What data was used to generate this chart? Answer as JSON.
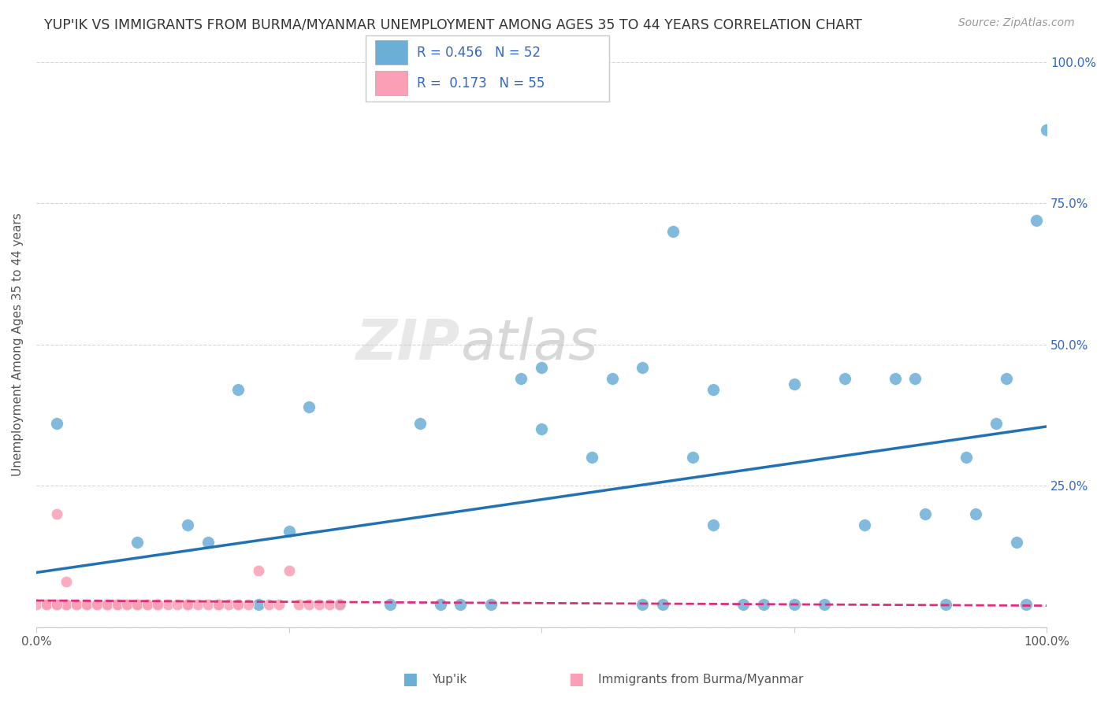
{
  "title": "YUP'IK VS IMMIGRANTS FROM BURMA/MYANMAR UNEMPLOYMENT AMONG AGES 35 TO 44 YEARS CORRELATION CHART",
  "source": "Source: ZipAtlas.com",
  "ylabel": "Unemployment Among Ages 35 to 44 years",
  "xlim": [
    0.0,
    1.0
  ],
  "ylim": [
    0.0,
    1.0
  ],
  "xtick_positions": [
    0.0,
    0.25,
    0.5,
    0.75,
    1.0
  ],
  "xticklabels": [
    "0.0%",
    "",
    "",
    "",
    "100.0%"
  ],
  "ytick_positions": [
    0.0,
    0.25,
    0.5,
    0.75,
    1.0
  ],
  "ytick_labels_right": [
    "",
    "25.0%",
    "50.0%",
    "75.0%",
    "100.0%"
  ],
  "legend_r1": "0.456",
  "legend_n1": "52",
  "legend_r2": "0.173",
  "legend_n2": "55",
  "legend_label1": "Yup'ik",
  "legend_label2": "Immigrants from Burma/Myanmar",
  "color_blue": "#6baed6",
  "color_pink": "#fa9fb5",
  "color_line_blue": "#2171b5",
  "color_line_pink": "#de2d7a",
  "watermark_zip": "ZIP",
  "watermark_atlas": "atlas",
  "background_color": "#ffffff",
  "grid_color": "#cccccc",
  "blue_x": [
    0.02,
    0.05,
    0.07,
    0.08,
    0.1,
    0.12,
    0.15,
    0.17,
    0.2,
    0.22,
    0.25,
    0.27,
    0.3,
    0.35,
    0.38,
    0.4,
    0.42,
    0.45,
    0.48,
    0.5,
    0.5,
    0.55,
    0.57,
    0.6,
    0.62,
    0.63,
    0.65,
    0.67,
    0.67,
    0.7,
    0.72,
    0.75,
    0.78,
    0.8,
    0.82,
    0.85,
    0.87,
    0.88,
    0.9,
    0.92,
    0.93,
    0.95,
    0.96,
    0.97,
    0.98,
    0.99,
    1.0,
    0.1,
    0.15,
    0.18,
    0.6,
    0.75
  ],
  "blue_y": [
    0.36,
    0.04,
    0.04,
    0.04,
    0.15,
    0.04,
    0.18,
    0.15,
    0.42,
    0.04,
    0.17,
    0.39,
    0.04,
    0.04,
    0.36,
    0.04,
    0.04,
    0.04,
    0.44,
    0.46,
    0.35,
    0.3,
    0.44,
    0.04,
    0.04,
    0.7,
    0.3,
    0.18,
    0.42,
    0.04,
    0.04,
    0.43,
    0.04,
    0.44,
    0.18,
    0.44,
    0.44,
    0.2,
    0.04,
    0.3,
    0.2,
    0.36,
    0.44,
    0.15,
    0.04,
    0.72,
    0.88,
    0.04,
    0.04,
    0.04,
    0.46,
    0.04
  ],
  "pink_x": [
    0.0,
    0.01,
    0.01,
    0.01,
    0.02,
    0.02,
    0.02,
    0.03,
    0.03,
    0.03,
    0.04,
    0.04,
    0.05,
    0.05,
    0.06,
    0.06,
    0.07,
    0.08,
    0.09,
    0.1,
    0.11,
    0.12,
    0.13,
    0.14,
    0.15,
    0.16,
    0.17,
    0.18,
    0.19,
    0.2,
    0.21,
    0.22,
    0.23,
    0.24,
    0.25,
    0.26,
    0.27,
    0.28,
    0.29,
    0.3,
    0.02,
    0.03,
    0.04,
    0.05,
    0.06,
    0.07,
    0.08,
    0.09,
    0.1,
    0.11,
    0.12,
    0.15,
    0.18,
    0.2,
    0.02
  ],
  "pink_y": [
    0.04,
    0.04,
    0.04,
    0.04,
    0.04,
    0.04,
    0.04,
    0.04,
    0.04,
    0.04,
    0.04,
    0.04,
    0.04,
    0.04,
    0.04,
    0.04,
    0.04,
    0.04,
    0.04,
    0.04,
    0.04,
    0.04,
    0.04,
    0.04,
    0.04,
    0.04,
    0.04,
    0.04,
    0.04,
    0.04,
    0.04,
    0.1,
    0.04,
    0.04,
    0.1,
    0.04,
    0.04,
    0.04,
    0.04,
    0.04,
    0.2,
    0.08,
    0.04,
    0.04,
    0.04,
    0.04,
    0.04,
    0.04,
    0.04,
    0.04,
    0.04,
    0.04,
    0.04,
    0.04,
    0.04
  ]
}
